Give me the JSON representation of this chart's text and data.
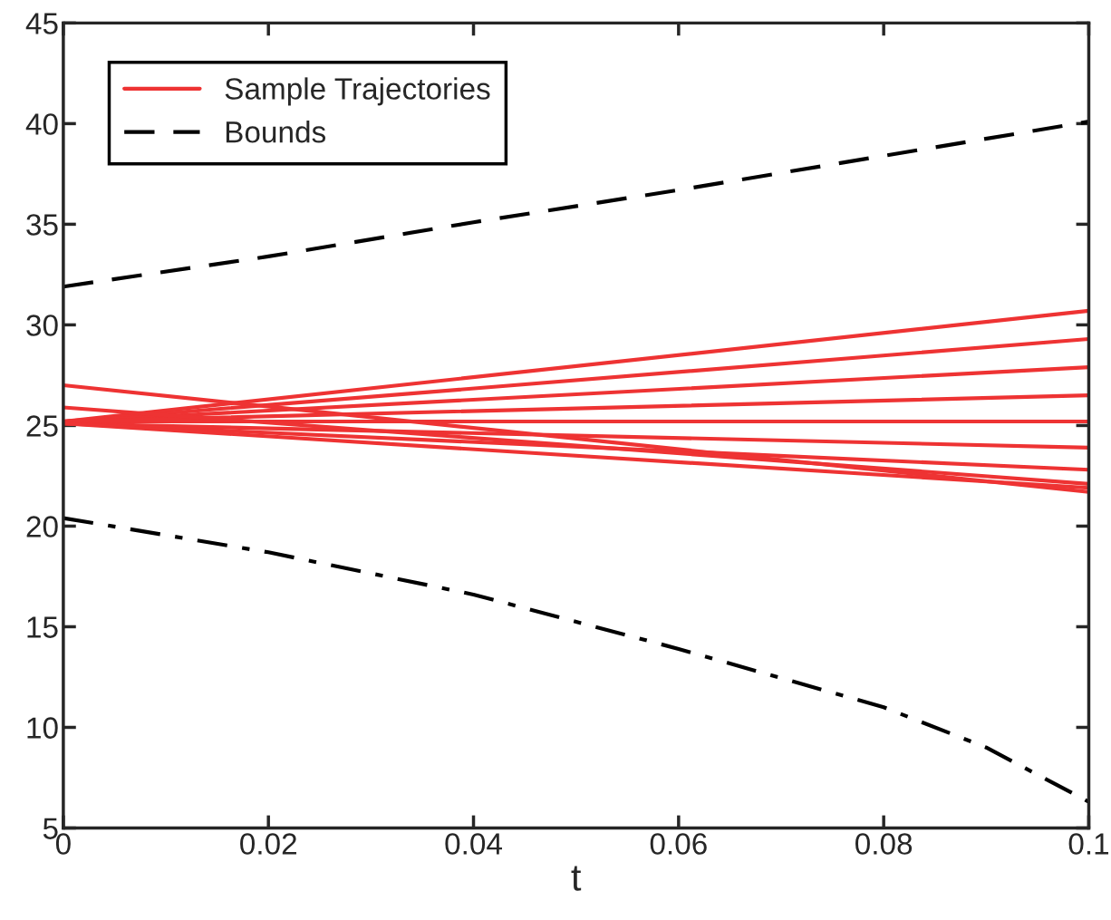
{
  "chart_data": {
    "type": "line",
    "xlabel": "t",
    "xlim": [
      0,
      0.1
    ],
    "xticks": [
      0,
      0.02,
      0.04,
      0.06,
      0.08,
      0.1
    ],
    "ylim": [
      5,
      45
    ],
    "yticks": [
      5,
      10,
      15,
      20,
      25,
      30,
      35,
      40,
      45
    ],
    "grid": false,
    "legend": "top left",
    "marker": "none",
    "series": [
      {
        "name": "Sample Trajectories",
        "color": "#ee3333",
        "line_style": "solid",
        "x": [
          0,
          0.1
        ],
        "values": [
          25.2,
          30.7
        ]
      },
      {
        "color": "#ee3333",
        "line_style": "solid",
        "x": [
          0,
          0.1
        ],
        "values": [
          25.2,
          29.3
        ]
      },
      {
        "color": "#ee3333",
        "line_style": "solid",
        "x": [
          0,
          0.1
        ],
        "values": [
          25.2,
          27.9
        ]
      },
      {
        "color": "#ee3333",
        "line_style": "solid",
        "x": [
          0,
          0.1
        ],
        "values": [
          25.2,
          26.5
        ]
      },
      {
        "color": "#ee3333",
        "line_style": "solid",
        "x": [
          0,
          0.1
        ],
        "values": [
          25.2,
          25.2
        ]
      },
      {
        "color": "#ee3333",
        "line_style": "solid",
        "x": [
          0,
          0.1
        ],
        "values": [
          25.1,
          23.9
        ]
      },
      {
        "color": "#ee3333",
        "line_style": "solid",
        "x": [
          0,
          0.1
        ],
        "values": [
          25.1,
          22.8
        ]
      },
      {
        "color": "#ee3333",
        "line_style": "solid",
        "x": [
          0,
          0.1
        ],
        "values": [
          25.1,
          21.9
        ]
      },
      {
        "color": "#ee3333",
        "line_style": "solid",
        "x": [
          0,
          0.1
        ],
        "values": [
          25.9,
          22.1
        ]
      },
      {
        "color": "#ee3333",
        "line_style": "solid",
        "x": [
          0,
          0.1
        ],
        "values": [
          27.0,
          21.7
        ]
      },
      {
        "name": "Bounds",
        "color": "#000000",
        "line_style": "dashed",
        "x": [
          0,
          0.02,
          0.04,
          0.06,
          0.08,
          0.1
        ],
        "values": [
          31.9,
          33.4,
          35.1,
          36.7,
          38.4,
          40.1
        ]
      },
      {
        "color": "#000000",
        "line_style": "dashdot",
        "x": [
          0,
          0.02,
          0.04,
          0.06,
          0.08,
          0.09,
          0.1
        ],
        "values": [
          20.4,
          18.7,
          16.6,
          13.9,
          11.0,
          9.0,
          6.3
        ]
      }
    ]
  }
}
